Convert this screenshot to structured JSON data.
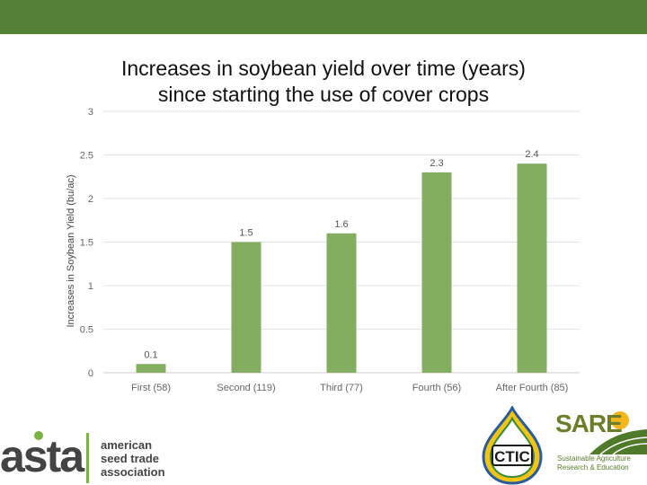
{
  "slide": {
    "title_line1": "Increases in soybean yield over time (years)",
    "title_line2": "since starting the use of cover crops"
  },
  "chart_data": {
    "type": "bar",
    "categories": [
      "First (58)",
      "Second (119)",
      "Third (77)",
      "Fourth (56)",
      "After Fourth (85)"
    ],
    "values": [
      0.1,
      1.5,
      1.6,
      2.3,
      2.4
    ],
    "data_labels": [
      "0.1",
      "1.5",
      "1.6",
      "2.3",
      "2.4"
    ],
    "ylabel": "Increases in Soybean Yield (bu/ac)",
    "ylim": [
      0,
      3
    ],
    "yticks": [
      0,
      0.5,
      1,
      1.5,
      2,
      2.5,
      3
    ],
    "ytick_labels": [
      "0",
      "0.5",
      "1",
      "1.5",
      "2",
      "2.5",
      "3"
    ],
    "grid": true,
    "bar_color": "#84ae5f"
  },
  "logos": {
    "asta": {
      "word": "asta",
      "lines": [
        "american",
        "seed trade",
        "association"
      ]
    },
    "ctic": {
      "word": "CTIC"
    },
    "sare": {
      "word": "SARE",
      "lines": [
        "Sustainable Agriculture",
        "Research & Education"
      ]
    }
  },
  "colors": {
    "header_band": "#538135",
    "bar": "#84ae5f",
    "grid": "#e3e3e3"
  }
}
